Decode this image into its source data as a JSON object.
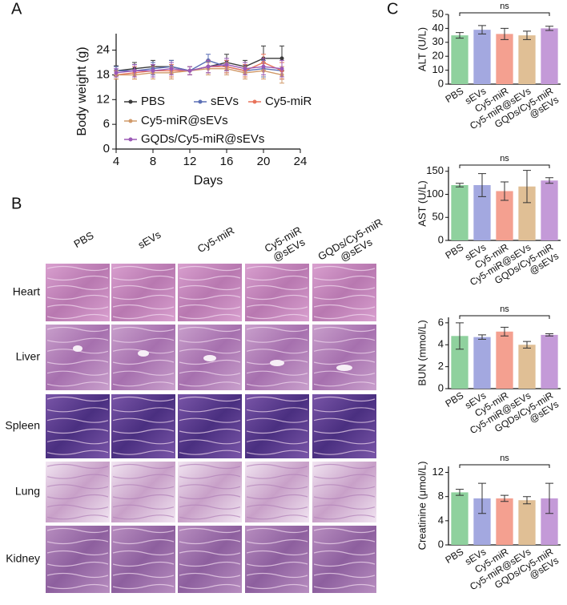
{
  "panels": [
    "A",
    "B",
    "C"
  ],
  "chart_data": [
    {
      "type": "line",
      "ylabel": "Body weight (g)",
      "xlabel": "Days",
      "x": [
        4,
        6,
        8,
        10,
        12,
        14,
        16,
        18,
        20,
        22
      ],
      "xlim": [
        4,
        24
      ],
      "xticks": [
        4,
        8,
        12,
        16,
        20,
        24
      ],
      "ylim": [
        0,
        28
      ],
      "yticks": [
        0,
        6,
        12,
        18,
        24
      ],
      "series": [
        {
          "name": "PBS",
          "color": "#3a3a3a",
          "values": [
            19,
            19.5,
            20,
            20,
            19,
            20,
            21,
            20,
            22,
            22
          ],
          "errors": [
            1.2,
            1.5,
            1.5,
            1.5,
            1,
            1.5,
            2,
            1.5,
            3,
            3
          ]
        },
        {
          "name": "sEVs",
          "color": "#5b6fb5",
          "values": [
            19,
            19,
            19.5,
            20,
            19,
            21.5,
            20,
            19,
            19.5,
            19
          ],
          "errors": [
            1,
            1.5,
            1.5,
            1.5,
            1,
            1.5,
            1.5,
            1.5,
            2,
            2
          ]
        },
        {
          "name": "Cy5-miR",
          "color": "#e8735a",
          "values": [
            18,
            18.5,
            19,
            19,
            19,
            20,
            20,
            19,
            21,
            19
          ],
          "errors": [
            1,
            1.5,
            1.5,
            1.5,
            1,
            1.5,
            1.5,
            1.5,
            2,
            2
          ]
        },
        {
          "name": "Cy5-miR@sEVs",
          "color": "#d19a6a",
          "values": [
            18,
            18,
            18.5,
            18.5,
            19,
            19.5,
            19.5,
            18.5,
            19,
            18
          ],
          "errors": [
            1,
            1,
            1.5,
            1.5,
            1,
            1.5,
            1.5,
            1.5,
            2,
            2
          ]
        },
        {
          "name": "GQDs/Cy5-miR@sEVs",
          "color": "#9b59b6",
          "values": [
            18.5,
            19,
            19,
            19.5,
            19,
            20,
            20.5,
            19.5,
            20,
            19.5
          ],
          "errors": [
            1,
            1.5,
            1.5,
            1.5,
            1,
            1.5,
            1.5,
            1.5,
            2,
            2
          ]
        }
      ]
    },
    {
      "type": "bar",
      "ylabel": "ALT (U/L)",
      "annotation": "ns",
      "categories": [
        "PBS",
        "sEVs",
        "Cy5-miR",
        "Cy5-miR@sEVs",
        "GQDs/Cy5-miR @sEVs"
      ],
      "values": [
        35,
        39,
        36,
        35,
        40
      ],
      "errors": [
        2,
        3,
        4,
        3,
        1.5
      ],
      "colors": [
        "#8fd19e",
        "#a3a8e0",
        "#f4a090",
        "#e0bf95",
        "#c49ad8"
      ],
      "ylim": [
        0,
        50
      ],
      "yticks": [
        0,
        10,
        20,
        30,
        40,
        50
      ]
    },
    {
      "type": "bar",
      "ylabel": "AST (U/L)",
      "annotation": "ns",
      "categories": [
        "PBS",
        "sEVs",
        "Cy5-miR",
        "Cy5-miR@sEVs",
        "GQDs/Cy5-miR @sEVs"
      ],
      "values": [
        120,
        120,
        107,
        117,
        130
      ],
      "errors": [
        4,
        25,
        20,
        35,
        6
      ],
      "colors": [
        "#8fd19e",
        "#a3a8e0",
        "#f4a090",
        "#e0bf95",
        "#c49ad8"
      ],
      "ylim": [
        0,
        160
      ],
      "yticks": [
        0,
        50,
        100,
        150
      ]
    },
    {
      "type": "bar",
      "ylabel": "BUN (mmol/L)",
      "annotation": "ns",
      "categories": [
        "PBS",
        "sEVs",
        "Cy5-miR",
        "Cy5-miR@sEVs",
        "GQDs/Cy5-miR @sEVs"
      ],
      "values": [
        4.8,
        4.7,
        5.2,
        4.0,
        4.9
      ],
      "errors": [
        1.2,
        0.2,
        0.4,
        0.3,
        0.1
      ],
      "colors": [
        "#8fd19e",
        "#a3a8e0",
        "#f4a090",
        "#e0bf95",
        "#c49ad8"
      ],
      "ylim": [
        0,
        6.5
      ],
      "yticks": [
        0,
        2,
        4,
        6
      ]
    },
    {
      "type": "bar",
      "ylabel": "Creatinine (μmol/L)",
      "annotation": "ns",
      "categories": [
        "PBS",
        "sEVs",
        "Cy5-miR",
        "Cy5-miR@sEVs",
        "GQDs/Cy5-miR @sEVs"
      ],
      "values": [
        8.7,
        7.7,
        7.7,
        7.4,
        7.7
      ],
      "errors": [
        0.5,
        2.5,
        0.5,
        0.6,
        2.5
      ],
      "colors": [
        "#8fd19e",
        "#a3a8e0",
        "#f4a090",
        "#e0bf95",
        "#c49ad8"
      ],
      "ylim": [
        0,
        13
      ],
      "yticks": [
        0,
        4,
        8,
        12
      ]
    }
  ],
  "histology": {
    "columns": [
      "PBS",
      "sEVs",
      "Cy5-miR",
      "Cy5-miR @sEVs",
      "GQDs/Cy5-miR @sEVs"
    ],
    "rows": [
      "Heart",
      "Liver",
      "Spleen",
      "Lung",
      "Kidney"
    ]
  }
}
